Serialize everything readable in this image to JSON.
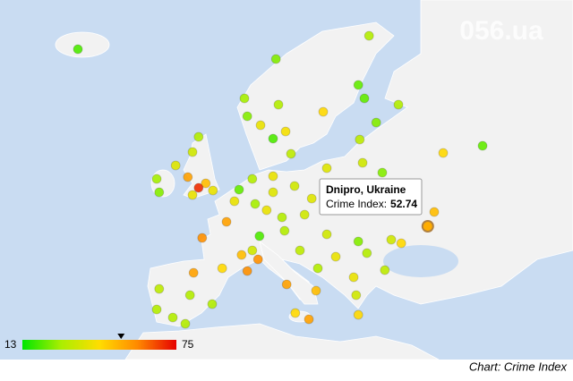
{
  "map": {
    "watermark": "056.ua",
    "credit": "Chart: Crime Index",
    "color_scale": {
      "min": 13,
      "max": 75,
      "colors": [
        "#00e600",
        "#aaee00",
        "#ffdd00",
        "#ff8800",
        "#e60000"
      ]
    },
    "selected": {
      "name": "Dnipro, Ukraine",
      "label": "Crime Index:",
      "value": 52.74,
      "lon": 31.6,
      "lat": 46.7
    },
    "points": [
      {
        "lon": -17.25,
        "lat": 66.5,
        "value": 20
      },
      {
        "lon": 23.4,
        "lat": 68,
        "value": 30
      },
      {
        "lon": 10.4,
        "lat": 65.4,
        "value": 25
      },
      {
        "lon": 21.9,
        "lat": 62.5,
        "value": 22
      },
      {
        "lon": 6,
        "lat": 61,
        "value": 28
      },
      {
        "lon": 10.75,
        "lat": 60.3,
        "value": 30
      },
      {
        "lon": 22.75,
        "lat": 61,
        "value": 22
      },
      {
        "lon": 27.5,
        "lat": 60.3,
        "value": 30
      },
      {
        "lon": 17,
        "lat": 59.5,
        "value": 45
      },
      {
        "lon": 6.4,
        "lat": 59,
        "value": 25
      },
      {
        "lon": 24.4,
        "lat": 58.3,
        "value": 25
      },
      {
        "lon": 8.25,
        "lat": 58,
        "value": 40
      },
      {
        "lon": 11.75,
        "lat": 57.3,
        "value": 42
      },
      {
        "lon": 10,
        "lat": 56.5,
        "value": 20
      },
      {
        "lon": -0.4,
        "lat": 56.7,
        "value": 30
      },
      {
        "lon": 22.1,
        "lat": 56.4,
        "value": 32
      },
      {
        "lon": 39.25,
        "lat": 55.7,
        "value": 22
      },
      {
        "lon": 33.75,
        "lat": 54.9,
        "value": 45
      },
      {
        "lon": -1.25,
        "lat": 55,
        "value": 35
      },
      {
        "lon": 12.5,
        "lat": 54.8,
        "value": 32
      },
      {
        "lon": 22.5,
        "lat": 53.8,
        "value": 35
      },
      {
        "lon": -3.6,
        "lat": 53.5,
        "value": 38
      },
      {
        "lon": -1.9,
        "lat": 52.2,
        "value": 55
      },
      {
        "lon": 0.6,
        "lat": 51.5,
        "value": 50
      },
      {
        "lon": -0.4,
        "lat": 51,
        "value": 70
      },
      {
        "lon": 17.5,
        "lat": 53.2,
        "value": 38
      },
      {
        "lon": -6.25,
        "lat": 52,
        "value": 28
      },
      {
        "lon": -5.9,
        "lat": 50.5,
        "value": 25
      },
      {
        "lon": -1.25,
        "lat": 50.2,
        "value": 40
      },
      {
        "lon": 1.6,
        "lat": 50.7,
        "value": 40
      },
      {
        "lon": 7.1,
        "lat": 52,
        "value": 30
      },
      {
        "lon": 10,
        "lat": 52.3,
        "value": 40
      },
      {
        "lon": 25.25,
        "lat": 52.7,
        "value": 25
      },
      {
        "lon": 5.25,
        "lat": 50.8,
        "value": 22
      },
      {
        "lon": 13,
        "lat": 51.2,
        "value": 35
      },
      {
        "lon": 4.6,
        "lat": 49.5,
        "value": 40
      },
      {
        "lon": 10,
        "lat": 50.5,
        "value": 38
      },
      {
        "lon": 15.4,
        "lat": 49.8,
        "value": 38
      },
      {
        "lon": 7.5,
        "lat": 49.2,
        "value": 28
      },
      {
        "lon": 9.1,
        "lat": 48.5,
        "value": 40
      },
      {
        "lon": 11.25,
        "lat": 47.7,
        "value": 30
      },
      {
        "lon": 14.4,
        "lat": 48,
        "value": 35
      },
      {
        "lon": 32.5,
        "lat": 48.3,
        "value": 50
      },
      {
        "lon": 3.5,
        "lat": 47.2,
        "value": 55
      },
      {
        "lon": 0.1,
        "lat": 45.4,
        "value": 58
      },
      {
        "lon": 8.1,
        "lat": 45.6,
        "value": 20
      },
      {
        "lon": 11.6,
        "lat": 46.2,
        "value": 30
      },
      {
        "lon": 17.5,
        "lat": 45.8,
        "value": 35
      },
      {
        "lon": 21.9,
        "lat": 45,
        "value": 25
      },
      {
        "lon": 26.5,
        "lat": 45.2,
        "value": 35
      },
      {
        "lon": 27.9,
        "lat": 44.8,
        "value": 45
      },
      {
        "lon": 7.1,
        "lat": 44,
        "value": 35
      },
      {
        "lon": 13.75,
        "lat": 44,
        "value": 32
      },
      {
        "lon": 18.75,
        "lat": 43.3,
        "value": 40
      },
      {
        "lon": 23.1,
        "lat": 43.7,
        "value": 30
      },
      {
        "lon": 5.6,
        "lat": 43.5,
        "value": 50
      },
      {
        "lon": 7.9,
        "lat": 43,
        "value": 58
      },
      {
        "lon": 2.9,
        "lat": 42,
        "value": 45
      },
      {
        "lon": 6.4,
        "lat": 41.7,
        "value": 58
      },
      {
        "lon": -1.1,
        "lat": 41.5,
        "value": 55
      },
      {
        "lon": 16.25,
        "lat": 42,
        "value": 30
      },
      {
        "lon": 25.6,
        "lat": 41.8,
        "value": 32
      },
      {
        "lon": 11.9,
        "lat": 40.2,
        "value": 55
      },
      {
        "lon": 16,
        "lat": 39.5,
        "value": 50
      },
      {
        "lon": 21.25,
        "lat": 41,
        "value": 40
      },
      {
        "lon": 21.6,
        "lat": 39,
        "value": 35
      },
      {
        "lon": -5.9,
        "lat": 39.7,
        "value": 32
      },
      {
        "lon": -1.6,
        "lat": 39,
        "value": 30
      },
      {
        "lon": 1.5,
        "lat": 38,
        "value": 30
      },
      {
        "lon": 13.1,
        "lat": 37,
        "value": 45
      },
      {
        "lon": 15,
        "lat": 36.3,
        "value": 55
      },
      {
        "lon": 21.9,
        "lat": 36.8,
        "value": 45
      },
      {
        "lon": -4,
        "lat": 36.5,
        "value": 30
      },
      {
        "lon": -6.25,
        "lat": 37.4,
        "value": 30
      },
      {
        "lon": -2.25,
        "lat": 35.8,
        "value": 30
      }
    ]
  }
}
